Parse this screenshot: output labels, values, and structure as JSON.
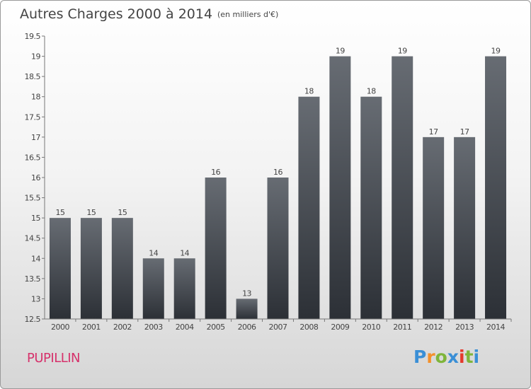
{
  "title": "Autres Charges 2000 à 2014",
  "unit_note": "(en milliers d'€)",
  "place": "PUPILLIN",
  "logo": {
    "letters": [
      "P",
      "r",
      "o",
      "x",
      "i",
      "t",
      "i"
    ],
    "colors": [
      "#3a8fd6",
      "#f3902a",
      "#7fb53a",
      "#3a8fd6",
      "#e5392b",
      "#7fb53a",
      "#3a8fd6"
    ]
  },
  "colors": {
    "bar_top": "#676c73",
    "bar_bottom": "#2c3036",
    "text": "#444444",
    "place": "#d6316b"
  },
  "chart_data": {
    "type": "bar",
    "title": "Autres Charges 2000 à 2014",
    "ylabel": "",
    "xlabel": "",
    "categories": [
      "2000",
      "2001",
      "2002",
      "2003",
      "2004",
      "2005",
      "2006",
      "2007",
      "2008",
      "2009",
      "2010",
      "2011",
      "2012",
      "2013",
      "2014"
    ],
    "values": [
      15,
      15,
      15,
      14,
      14,
      16,
      13,
      16,
      18,
      19,
      18,
      19,
      17,
      17,
      19
    ],
    "data_labels": [
      "15",
      "15",
      "15",
      "14",
      "14",
      "16",
      "13",
      "16",
      "18",
      "19",
      "18",
      "19",
      "17",
      "17",
      "19"
    ],
    "ylim": [
      12.5,
      19.5
    ],
    "yticks": [
      12.5,
      13,
      13.5,
      14,
      14.5,
      15,
      15.5,
      16,
      16.5,
      17,
      17.5,
      18,
      18.5,
      19,
      19.5
    ],
    "ytick_labels": [
      "12.5",
      "13",
      "13.5",
      "14",
      "14.5",
      "15",
      "15.5",
      "16",
      "16.5",
      "17",
      "17.5",
      "18",
      "18.5",
      "19",
      "19.5"
    ],
    "grid": false,
    "legend": "none"
  }
}
